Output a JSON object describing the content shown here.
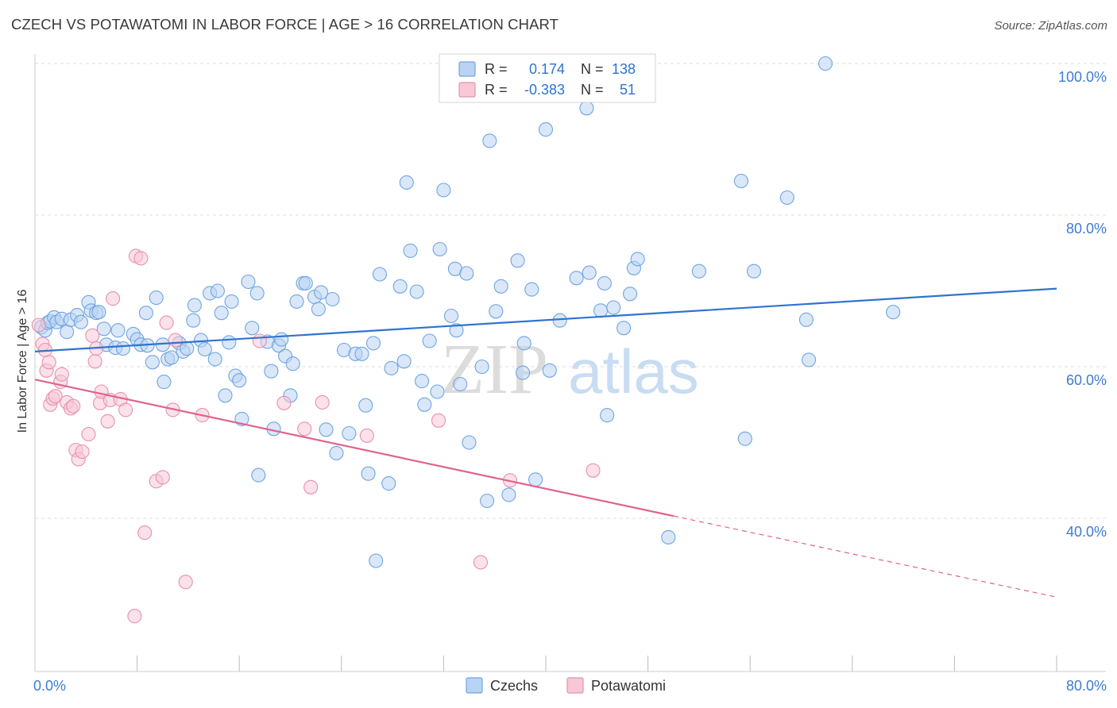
{
  "title": "CZECH VS POTAWATOMI IN LABOR FORCE | AGE > 16 CORRELATION CHART",
  "source": "Source: ZipAtlas.com",
  "chart_data": {
    "type": "scatter",
    "title": "CZECH VS POTAWATOMI IN LABOR FORCE | AGE > 16 CORRELATION CHART",
    "xlabel": "",
    "ylabel": "In Labor Force | Age > 16",
    "xlim": [
      0,
      80
    ],
    "ylim": [
      20,
      102
    ],
    "x_tick_labels": [
      "0.0%",
      "80.0%"
    ],
    "y_tick_values": [
      40,
      60,
      80,
      100
    ],
    "y_tick_labels": [
      "40.0%",
      "60.0%",
      "80.0%",
      "100.0%"
    ],
    "grid": true,
    "legend_position": "bottom",
    "watermark": {
      "part1": "ZIP",
      "part2": "atlas"
    },
    "stats_box": {
      "r_label": "R =",
      "n_label": "N =",
      "rows": [
        {
          "r": "0.174",
          "n": "138"
        },
        {
          "r": "-0.383",
          "n": "51"
        }
      ]
    },
    "series": [
      {
        "name": "Czechs",
        "color": "#6fa5e2",
        "fill": "#b9d3f3",
        "line_color": "#2e74cf",
        "trend": {
          "x0": 0,
          "y0": 62.0,
          "x1": 80,
          "y1": 70.3
        },
        "points": [
          [
            0.5,
            65.2
          ],
          [
            0.8,
            64.8
          ],
          [
            1.0,
            65.8
          ],
          [
            1.2,
            66.0
          ],
          [
            1.5,
            66.5
          ],
          [
            1.7,
            65.9
          ],
          [
            2.1,
            66.3
          ],
          [
            2.5,
            64.6
          ],
          [
            2.8,
            66.2
          ],
          [
            3.3,
            66.8
          ],
          [
            3.6,
            65.9
          ],
          [
            4.2,
            68.5
          ],
          [
            4.4,
            67.4
          ],
          [
            4.8,
            67.1
          ],
          [
            5.0,
            67.2
          ],
          [
            5.4,
            65.0
          ],
          [
            5.6,
            62.9
          ],
          [
            6.3,
            62.5
          ],
          [
            6.5,
            64.8
          ],
          [
            6.9,
            62.4
          ],
          [
            7.7,
            64.3
          ],
          [
            8.0,
            63.6
          ],
          [
            8.3,
            62.9
          ],
          [
            8.7,
            67.1
          ],
          [
            8.8,
            62.8
          ],
          [
            9.2,
            60.6
          ],
          [
            9.5,
            69.1
          ],
          [
            10.0,
            62.9
          ],
          [
            10.1,
            58.0
          ],
          [
            10.4,
            61.0
          ],
          [
            10.7,
            61.2
          ],
          [
            11.3,
            63.1
          ],
          [
            11.6,
            62.0
          ],
          [
            11.9,
            62.4
          ],
          [
            12.4,
            66.1
          ],
          [
            12.5,
            68.1
          ],
          [
            13.0,
            63.5
          ],
          [
            13.3,
            62.3
          ],
          [
            13.7,
            69.7
          ],
          [
            14.1,
            61.0
          ],
          [
            14.3,
            70.0
          ],
          [
            14.6,
            67.1
          ],
          [
            14.9,
            56.2
          ],
          [
            15.2,
            63.2
          ],
          [
            15.4,
            68.6
          ],
          [
            15.7,
            58.8
          ],
          [
            16.0,
            58.2
          ],
          [
            16.2,
            53.1
          ],
          [
            16.7,
            71.2
          ],
          [
            17.0,
            65.1
          ],
          [
            17.4,
            69.7
          ],
          [
            17.5,
            45.7
          ],
          [
            18.2,
            63.3
          ],
          [
            18.5,
            59.4
          ],
          [
            18.7,
            51.8
          ],
          [
            19.1,
            62.8
          ],
          [
            19.3,
            63.6
          ],
          [
            19.6,
            61.4
          ],
          [
            20.0,
            56.2
          ],
          [
            20.2,
            60.4
          ],
          [
            20.5,
            68.6
          ],
          [
            21.0,
            71.0
          ],
          [
            21.2,
            71.0
          ],
          [
            21.9,
            69.2
          ],
          [
            22.2,
            67.6
          ],
          [
            22.4,
            69.8
          ],
          [
            23.3,
            68.9
          ],
          [
            23.6,
            48.6
          ],
          [
            22.8,
            51.7
          ],
          [
            24.2,
            62.2
          ],
          [
            24.6,
            51.2
          ],
          [
            25.1,
            61.7
          ],
          [
            25.6,
            61.7
          ],
          [
            25.9,
            54.9
          ],
          [
            26.1,
            45.9
          ],
          [
            26.5,
            63.1
          ],
          [
            26.7,
            34.4
          ],
          [
            27.0,
            72.2
          ],
          [
            27.7,
            44.6
          ],
          [
            27.9,
            59.8
          ],
          [
            28.6,
            70.6
          ],
          [
            28.9,
            60.7
          ],
          [
            29.1,
            84.3
          ],
          [
            29.4,
            75.3
          ],
          [
            29.9,
            69.9
          ],
          [
            30.3,
            58.1
          ],
          [
            30.5,
            55.0
          ],
          [
            30.9,
            63.4
          ],
          [
            31.5,
            56.7
          ],
          [
            31.7,
            75.5
          ],
          [
            32.0,
            83.3
          ],
          [
            32.6,
            66.7
          ],
          [
            32.9,
            72.9
          ],
          [
            33.0,
            64.8
          ],
          [
            33.3,
            57.7
          ],
          [
            33.8,
            72.3
          ],
          [
            34.0,
            50.0
          ],
          [
            35.0,
            60.0
          ],
          [
            35.4,
            42.3
          ],
          [
            35.6,
            89.8
          ],
          [
            36.1,
            67.3
          ],
          [
            36.5,
            70.6
          ],
          [
            37.1,
            43.1
          ],
          [
            37.8,
            74.0
          ],
          [
            38.2,
            59.2
          ],
          [
            38.3,
            63.1
          ],
          [
            38.9,
            70.2
          ],
          [
            39.2,
            45.1
          ],
          [
            40.0,
            91.3
          ],
          [
            40.3,
            59.5
          ],
          [
            41.1,
            66.1
          ],
          [
            42.4,
            71.7
          ],
          [
            43.2,
            94.1
          ],
          [
            43.4,
            72.4
          ],
          [
            44.3,
            67.4
          ],
          [
            44.6,
            71.0
          ],
          [
            44.8,
            53.6
          ],
          [
            45.3,
            67.8
          ],
          [
            46.1,
            65.1
          ],
          [
            46.6,
            69.6
          ],
          [
            46.9,
            73.0
          ],
          [
            47.2,
            74.2
          ],
          [
            49.6,
            37.5
          ],
          [
            52.0,
            72.6
          ],
          [
            55.3,
            84.5
          ],
          [
            55.6,
            50.5
          ],
          [
            56.3,
            72.6
          ],
          [
            58.9,
            82.3
          ],
          [
            60.4,
            66.2
          ],
          [
            60.6,
            60.9
          ],
          [
            61.9,
            100.0
          ],
          [
            67.2,
            67.2
          ]
        ]
      },
      {
        "name": "Potawatomi",
        "color": "#e891ad",
        "fill": "#f8c8d7",
        "line_color": "#e0638f",
        "trend": {
          "x0": 0,
          "y0": 58.3,
          "x1": 50,
          "y1": 40.3
        },
        "trend_dashed_to": {
          "x": 80,
          "y": 29.6
        },
        "points": [
          [
            0.3,
            65.5
          ],
          [
            0.6,
            63.0
          ],
          [
            0.8,
            62.2
          ],
          [
            0.9,
            59.5
          ],
          [
            1.1,
            60.6
          ],
          [
            1.2,
            55.0
          ],
          [
            1.4,
            55.8
          ],
          [
            1.6,
            56.1
          ],
          [
            2.0,
            58.0
          ],
          [
            2.1,
            59.0
          ],
          [
            2.5,
            55.3
          ],
          [
            2.8,
            54.5
          ],
          [
            3.0,
            54.8
          ],
          [
            3.2,
            49.0
          ],
          [
            3.4,
            47.8
          ],
          [
            3.7,
            48.8
          ],
          [
            4.2,
            51.1
          ],
          [
            4.5,
            64.1
          ],
          [
            4.7,
            60.7
          ],
          [
            4.8,
            62.4
          ],
          [
            5.1,
            55.2
          ],
          [
            5.2,
            56.7
          ],
          [
            5.7,
            52.8
          ],
          [
            5.9,
            55.6
          ],
          [
            6.1,
            69.0
          ],
          [
            6.7,
            55.7
          ],
          [
            7.1,
            54.3
          ],
          [
            7.8,
            27.1
          ],
          [
            7.9,
            74.6
          ],
          [
            8.3,
            74.3
          ],
          [
            8.6,
            38.1
          ],
          [
            9.5,
            44.9
          ],
          [
            10.0,
            45.4
          ],
          [
            10.3,
            65.8
          ],
          [
            10.8,
            54.3
          ],
          [
            11.0,
            63.5
          ],
          [
            11.8,
            31.6
          ],
          [
            13.1,
            53.6
          ],
          [
            17.6,
            63.4
          ],
          [
            19.5,
            55.2
          ],
          [
            21.1,
            51.8
          ],
          [
            21.6,
            44.1
          ],
          [
            22.5,
            55.3
          ],
          [
            26.0,
            50.9
          ],
          [
            31.6,
            52.9
          ],
          [
            34.9,
            34.2
          ],
          [
            37.2,
            45.0
          ],
          [
            43.7,
            46.3
          ]
        ]
      }
    ]
  }
}
